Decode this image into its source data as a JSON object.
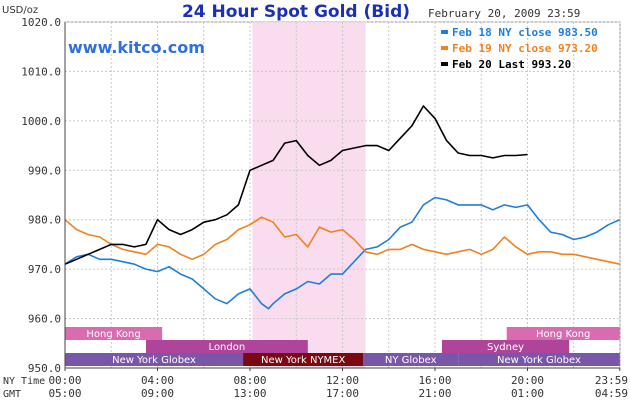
{
  "chart_data": {
    "type": "line",
    "title": "24 Hour Spot Gold (Bid)",
    "timestamp": "February 20, 2009 23:59",
    "watermark": "www.kitco.com",
    "ylabel": "USD/oz",
    "ylim": [
      950,
      1020
    ],
    "yticks": [
      "950.0",
      "960.0",
      "970.0",
      "980.0",
      "990.0",
      "1000.0",
      "1010.0",
      "1020.0"
    ],
    "x_axis": {
      "ny_label": "NY Time",
      "gmt_label": "GMT",
      "ny_ticks": [
        "00:00",
        "04:00",
        "08:00",
        "12:00",
        "16:00",
        "20:00",
        "23:59"
      ],
      "gmt_ticks": [
        "05:00",
        "09:00",
        "13:00",
        "17:00",
        "21:00",
        "01:00",
        "04:59"
      ],
      "range_hours": [
        0,
        24
      ]
    },
    "highlight": {
      "from_hour": 8.1,
      "to_hour": 13.0
    },
    "grid": true,
    "legend_position": "top-right",
    "sessions": [
      {
        "label": "Hong Kong",
        "row": 1,
        "start": 0,
        "end": 4.2,
        "color": "#d96bb0"
      },
      {
        "label": "Hong Kong",
        "row": 1,
        "start": 19.1,
        "end": 23.99,
        "color": "#d96bb0"
      },
      {
        "label": "London",
        "row": 2,
        "start": 3.5,
        "end": 10.5,
        "color": "#b0449a"
      },
      {
        "label": "Sydney",
        "row": 2,
        "start": 16.3,
        "end": 21.8,
        "color": "#b0449a"
      },
      {
        "label": "New York Globex",
        "row": 3,
        "start": 0,
        "end": 7.7,
        "color": "#7a56a8"
      },
      {
        "label": "New York NYMEX",
        "row": 3,
        "start": 7.7,
        "end": 12.9,
        "color": "#7a0a12"
      },
      {
        "label": "NY Globex",
        "row": 3,
        "start": 12.9,
        "end": 17.0,
        "color": "#7a56a8"
      },
      {
        "label": "New York Globex",
        "row": 3,
        "start": 17.0,
        "end": 23.99,
        "color": "#7a56a8"
      }
    ],
    "series": [
      {
        "name": "Feb 18 NY close 983.50",
        "color": "#1e7fd8",
        "x": [
          0,
          0.5,
          1,
          1.5,
          2,
          2.5,
          3,
          3.5,
          4,
          4.5,
          5,
          5.5,
          6,
          6.5,
          7,
          7.5,
          8,
          8.5,
          8.8,
          9,
          9.5,
          10,
          10.5,
          11,
          11.5,
          12,
          12.5,
          13,
          13.5,
          14,
          14.5,
          15,
          15.5,
          16,
          16.5,
          17,
          17.5,
          18,
          18.5,
          19,
          19.5,
          20,
          20.5,
          21,
          21.5,
          22,
          22.5,
          23,
          23.5,
          23.99
        ],
        "y": [
          971,
          972.5,
          973,
          972,
          972,
          971.5,
          971,
          970,
          969.5,
          970.5,
          969,
          968,
          966,
          964,
          963,
          965,
          966,
          963,
          962,
          963,
          965,
          966,
          967.5,
          967,
          969,
          969,
          971.5,
          974,
          974.5,
          976,
          978.5,
          979.5,
          983,
          984.5,
          984,
          983,
          983,
          983,
          982,
          983,
          982.5,
          983,
          980,
          977.5,
          977,
          976,
          976.5,
          977.5,
          979,
          980
        ]
      },
      {
        "name": "Feb 19 NY close 973.20",
        "color": "#f0821e",
        "x": [
          0,
          0.5,
          1,
          1.5,
          2,
          2.5,
          3,
          3.5,
          4,
          4.5,
          5,
          5.5,
          6,
          6.5,
          7,
          7.5,
          8,
          8.5,
          9,
          9.5,
          10,
          10.5,
          11,
          11.5,
          12,
          12.5,
          13,
          13.5,
          14,
          14.5,
          15,
          15.5,
          16,
          16.5,
          17,
          17.5,
          18,
          18.5,
          19,
          19.5,
          20,
          20.5,
          21,
          21.5,
          22,
          22.5,
          23,
          23.5,
          23.99
        ],
        "y": [
          980,
          978,
          977,
          976.5,
          975,
          974,
          973.5,
          973,
          975,
          974.5,
          973,
          972,
          973,
          975,
          976,
          978,
          979,
          980.5,
          979.5,
          976.5,
          977,
          974.5,
          978.5,
          977.5,
          978,
          976,
          973.5,
          973,
          974,
          974,
          975,
          974,
          973.5,
          973,
          973.5,
          974,
          973,
          974,
          976.5,
          974.5,
          973,
          973.5,
          973.5,
          973,
          973,
          972.5,
          972,
          971.5,
          971
        ]
      },
      {
        "name": "Feb 20 Last 993.20",
        "color": "#000000",
        "x": [
          0,
          0.5,
          1,
          1.5,
          2,
          2.5,
          3,
          3.5,
          4,
          4.5,
          5,
          5.5,
          6,
          6.5,
          7,
          7.5,
          8,
          8.5,
          9,
          9.5,
          10,
          10.5,
          11,
          11.5,
          12,
          12.5,
          13,
          13.5,
          14,
          14.5,
          15,
          15.5,
          16,
          16.5,
          17,
          17.5,
          18,
          18.5,
          19,
          19.5,
          20,
          20.5,
          21,
          21.5,
          22,
          22.5,
          23,
          23.5,
          23.99
        ],
        "y": [
          971,
          972,
          973,
          974,
          975,
          975,
          974.5,
          975,
          980,
          978,
          977,
          978,
          979.5,
          980,
          981,
          983,
          990,
          991,
          992,
          995.5,
          996,
          993,
          991,
          992,
          994,
          994.5,
          995,
          995,
          994,
          996.5,
          999,
          1003,
          1000.5,
          996,
          993.5,
          993,
          993,
          992.5,
          993,
          993,
          993.2,
          null,
          null,
          null,
          null,
          null,
          null,
          null,
          null
        ],
        "end_hour": 18.4
      }
    ]
  }
}
